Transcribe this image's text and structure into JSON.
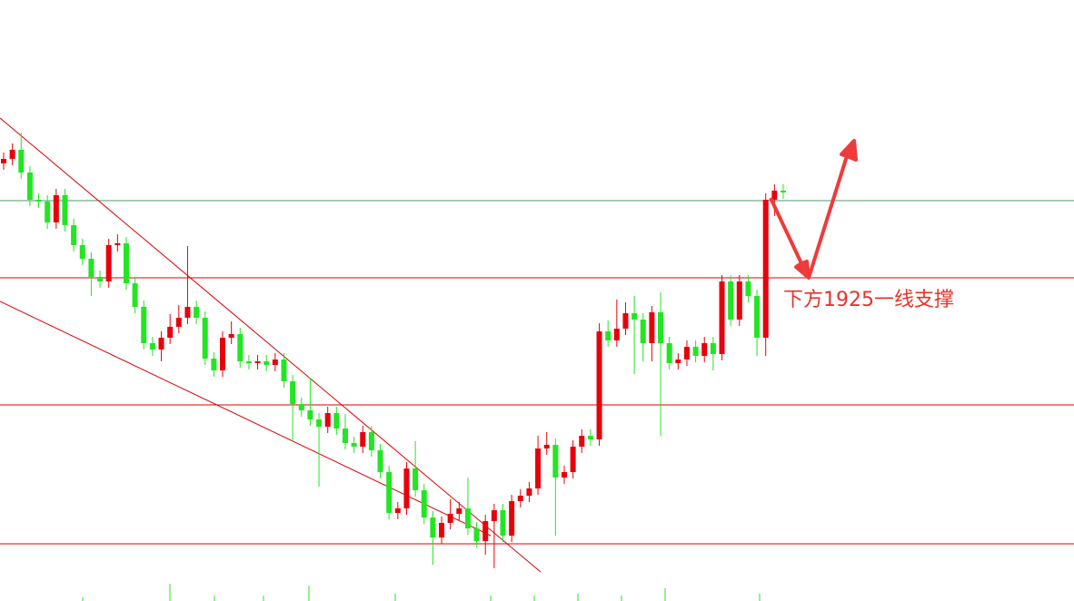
{
  "chart_data": {
    "type": "candlestick",
    "annotation": "下方1925一线支撑",
    "ylim": [
      1889.4,
      1955.6
    ],
    "up_color": "#e8000b",
    "down_color": "#22e622",
    "levels": [
      {
        "value": 1933.5,
        "color": "#4c9a6a"
      },
      {
        "value": 1925,
        "color": "#e00000"
      },
      {
        "value": 1911,
        "color": "#e00000"
      },
      {
        "value": 1895.7,
        "color": "#e00000"
      }
    ],
    "open": [
      1937.6,
      1938.1,
      1939.1,
      1936.6,
      1933.6,
      1933.4,
      1931.1,
      1934.1,
      1930.8,
      1928.6,
      1927.1,
      1925.1,
      1924.6,
      1928.6,
      1928.8,
      1924.4,
      1921.8,
      1917.8,
      1917.1,
      1918.4,
      1919.6,
      1920.6,
      1921.8,
      1920.6,
      1916.1,
      1914.8,
      1918.4,
      1918.8,
      1915.8,
      1915.6,
      1915.8,
      1915.4,
      1916.0,
      1913.6,
      1911.1,
      1910.4,
      1909.4,
      1908.6,
      1910.1,
      1908.4,
      1906.8,
      1906.4,
      1908.0,
      1906.0,
      1903.6,
      1899.1,
      1899.6,
      1904.0,
      1901.6,
      1898.6,
      1896.4,
      1898.0,
      1899.0,
      1899.6,
      1897.4,
      1896.0,
      1898.2,
      1899.4,
      1896.6,
      1900.4,
      1901.0,
      1901.8,
      1906.2,
      1906.6,
      1903.0,
      1903.6,
      1906.4,
      1907.6,
      1907.2,
      1919.1,
      1918.1,
      1919.4,
      1921.1,
      1920.4,
      1917.8,
      1921.2,
      1917.8,
      1915.6,
      1916.0,
      1917.4,
      1916.4,
      1917.8,
      1916.6,
      1924.6,
      1920.4,
      1924.6,
      1923.0,
      1918.4,
      1933.6,
      1934.6
    ],
    "high": [
      1938.8,
      1939.8,
      1941.0,
      1937.3,
      1934.3,
      1934.1,
      1934.8,
      1934.8,
      1931.5,
      1929.3,
      1927.8,
      1925.8,
      1929.3,
      1929.8,
      1929.5,
      1925.1,
      1922.5,
      1918.5,
      1919.1,
      1921.0,
      1922.0,
      1928.5,
      1922.5,
      1921.3,
      1916.8,
      1919.1,
      1920.2,
      1919.5,
      1916.5,
      1916.5,
      1916.5,
      1916.7,
      1916.7,
      1914.3,
      1911.8,
      1914.0,
      1910.1,
      1910.8,
      1910.8,
      1910.0,
      1907.5,
      1908.7,
      1908.7,
      1906.7,
      1904.3,
      1900.3,
      1904.7,
      1907.0,
      1902.3,
      1899.3,
      1898.7,
      1900.6,
      1900.3,
      1903.0,
      1898.1,
      1898.9,
      1900.1,
      1900.1,
      1901.1,
      1901.7,
      1902.5,
      1907.6,
      1908.0,
      1907.3,
      1904.3,
      1907.1,
      1908.3,
      1908.3,
      1920.0,
      1920.3,
      1922.6,
      1922.3,
      1923.0,
      1921.1,
      1921.9,
      1923.4,
      1918.5,
      1916.7,
      1918.1,
      1918.1,
      1918.5,
      1918.5,
      1925.3,
      1925.3,
      1925.3,
      1925.3,
      1923.7,
      1934.3,
      1935.3,
      1935.3
    ],
    "low": [
      1936.9,
      1937.4,
      1935.9,
      1932.9,
      1932.7,
      1930.4,
      1930.4,
      1930.1,
      1927.9,
      1926.4,
      1923.0,
      1923.9,
      1923.9,
      1927.9,
      1923.7,
      1921.1,
      1917.1,
      1916.4,
      1915.8,
      1917.7,
      1918.9,
      1919.9,
      1919.9,
      1915.4,
      1914.1,
      1914.1,
      1917.7,
      1915.1,
      1914.9,
      1914.9,
      1914.7,
      1914.7,
      1912.9,
      1907.0,
      1909.7,
      1908.7,
      1902.0,
      1907.9,
      1907.7,
      1906.1,
      1905.7,
      1905.7,
      1905.3,
      1902.9,
      1898.4,
      1898.4,
      1898.9,
      1900.9,
      1897.9,
      1893.4,
      1895.7,
      1897.3,
      1898.3,
      1896.7,
      1895.3,
      1894.5,
      1893.0,
      1895.9,
      1895.9,
      1899.7,
      1900.3,
      1901.1,
      1905.5,
      1896.6,
      1902.3,
      1902.9,
      1905.7,
      1906.5,
      1906.5,
      1917.4,
      1917.4,
      1918.7,
      1914.4,
      1915.8,
      1915.8,
      1907.6,
      1914.9,
      1914.9,
      1915.3,
      1915.7,
      1915.7,
      1914.8,
      1915.9,
      1919.7,
      1919.7,
      1922.3,
      1916.4,
      1916.4,
      1931.8,
      1933.7
    ],
    "close": [
      1938.1,
      1939.1,
      1936.6,
      1933.6,
      1933.4,
      1931.1,
      1934.1,
      1930.8,
      1928.6,
      1927.1,
      1925.1,
      1924.6,
      1928.6,
      1928.8,
      1924.4,
      1921.8,
      1917.8,
      1917.1,
      1918.4,
      1919.6,
      1920.6,
      1921.8,
      1920.6,
      1916.1,
      1914.8,
      1918.4,
      1918.8,
      1915.8,
      1915.6,
      1915.8,
      1915.4,
      1916.0,
      1913.6,
      1911.1,
      1910.4,
      1909.4,
      1908.6,
      1910.1,
      1908.4,
      1906.8,
      1906.4,
      1908.0,
      1906.0,
      1903.6,
      1899.1,
      1899.6,
      1904.0,
      1901.6,
      1898.6,
      1896.4,
      1898.0,
      1899.0,
      1899.6,
      1897.4,
      1896.0,
      1898.2,
      1899.4,
      1896.6,
      1900.4,
      1901.0,
      1901.8,
      1906.2,
      1906.6,
      1903.0,
      1903.6,
      1906.4,
      1907.6,
      1907.2,
      1919.1,
      1918.1,
      1919.4,
      1921.1,
      1920.4,
      1917.8,
      1921.2,
      1917.8,
      1915.6,
      1916.0,
      1917.4,
      1916.4,
      1917.8,
      1916.6,
      1924.6,
      1920.4,
      1924.6,
      1923.0,
      1918.4,
      1933.6,
      1934.6,
      1934.4
    ]
  }
}
